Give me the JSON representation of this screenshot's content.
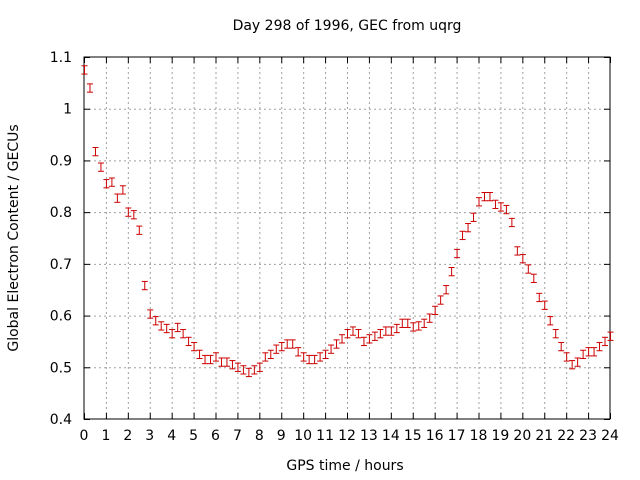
{
  "chart_data": {
    "type": "scatter",
    "title": "Day 298 of 1996, GEC from uqrg",
    "xlabel": "GPS time / hours",
    "ylabel": "Global Electron Content / GECUs",
    "xlim": [
      0,
      24
    ],
    "ylim": [
      0.4,
      1.1
    ],
    "grid": true,
    "x_ticks": [
      0,
      1,
      2,
      3,
      4,
      5,
      6,
      7,
      8,
      9,
      10,
      11,
      12,
      13,
      14,
      15,
      16,
      17,
      18,
      19,
      20,
      21,
      22,
      23,
      24
    ],
    "x_tick_labels": [
      "0",
      "1",
      "2",
      "3",
      "4",
      "5",
      "6",
      "7",
      "8",
      "9",
      "10",
      "11",
      "12",
      "13",
      "14",
      "15",
      "16",
      "17",
      "18",
      "19",
      "20",
      "21",
      "22",
      "23",
      "24"
    ],
    "y_ticks": [
      0.4,
      0.5,
      0.6,
      0.7,
      0.8,
      0.9,
      1.0,
      1.1
    ],
    "y_tick_labels": [
      "0.4",
      "0.5",
      "0.6",
      "0.7",
      "0.8",
      "0.9",
      "1",
      "1.1"
    ],
    "colors": {
      "series": "#cc0000",
      "grid": "#a0a0a0",
      "axis": "#000000"
    },
    "series": [
      {
        "name": "GEC",
        "error": 0.008,
        "x": [
          0.0,
          0.25,
          0.5,
          0.75,
          1.0,
          1.25,
          1.5,
          1.75,
          2.0,
          2.25,
          2.5,
          2.75,
          3.0,
          3.25,
          3.5,
          3.75,
          4.0,
          4.25,
          4.5,
          4.75,
          5.0,
          5.25,
          5.5,
          5.75,
          6.0,
          6.25,
          6.5,
          6.75,
          7.0,
          7.25,
          7.5,
          7.75,
          8.0,
          8.25,
          8.5,
          8.75,
          9.0,
          9.25,
          9.5,
          9.75,
          10.0,
          10.25,
          10.5,
          10.75,
          11.0,
          11.25,
          11.5,
          11.75,
          12.0,
          12.25,
          12.5,
          12.75,
          13.0,
          13.25,
          13.5,
          13.75,
          14.0,
          14.25,
          14.5,
          14.75,
          15.0,
          15.25,
          15.5,
          15.75,
          16.0,
          16.25,
          16.5,
          16.75,
          17.0,
          17.25,
          17.5,
          17.75,
          18.0,
          18.25,
          18.5,
          18.75,
          19.0,
          19.25,
          19.5,
          19.75,
          20.0,
          20.25,
          20.5,
          20.75,
          21.0,
          21.25,
          21.5,
          21.75,
          22.0,
          22.25,
          22.5,
          22.75,
          23.0,
          23.25,
          23.5,
          23.75,
          24.0
        ],
        "y": [
          1.075,
          1.04,
          0.917,
          0.887,
          0.855,
          0.858,
          0.827,
          0.843,
          0.8,
          0.795,
          0.765,
          0.658,
          0.603,
          0.59,
          0.58,
          0.575,
          0.565,
          0.577,
          0.565,
          0.55,
          0.54,
          0.525,
          0.515,
          0.515,
          0.52,
          0.51,
          0.51,
          0.505,
          0.5,
          0.495,
          0.49,
          0.495,
          0.5,
          0.52,
          0.525,
          0.535,
          0.54,
          0.545,
          0.545,
          0.53,
          0.52,
          0.515,
          0.515,
          0.52,
          0.525,
          0.535,
          0.545,
          0.555,
          0.565,
          0.57,
          0.565,
          0.55,
          0.555,
          0.56,
          0.565,
          0.57,
          0.57,
          0.575,
          0.585,
          0.585,
          0.578,
          0.58,
          0.585,
          0.595,
          0.61,
          0.63,
          0.65,
          0.685,
          0.72,
          0.755,
          0.77,
          0.79,
          0.82,
          0.83,
          0.83,
          0.815,
          0.81,
          0.805,
          0.78,
          0.725,
          0.71,
          0.69,
          0.672,
          0.635,
          0.62,
          0.59,
          0.565,
          0.54,
          0.52,
          0.505,
          0.51,
          0.525,
          0.53,
          0.53,
          0.54,
          0.55,
          0.56
        ]
      }
    ]
  }
}
